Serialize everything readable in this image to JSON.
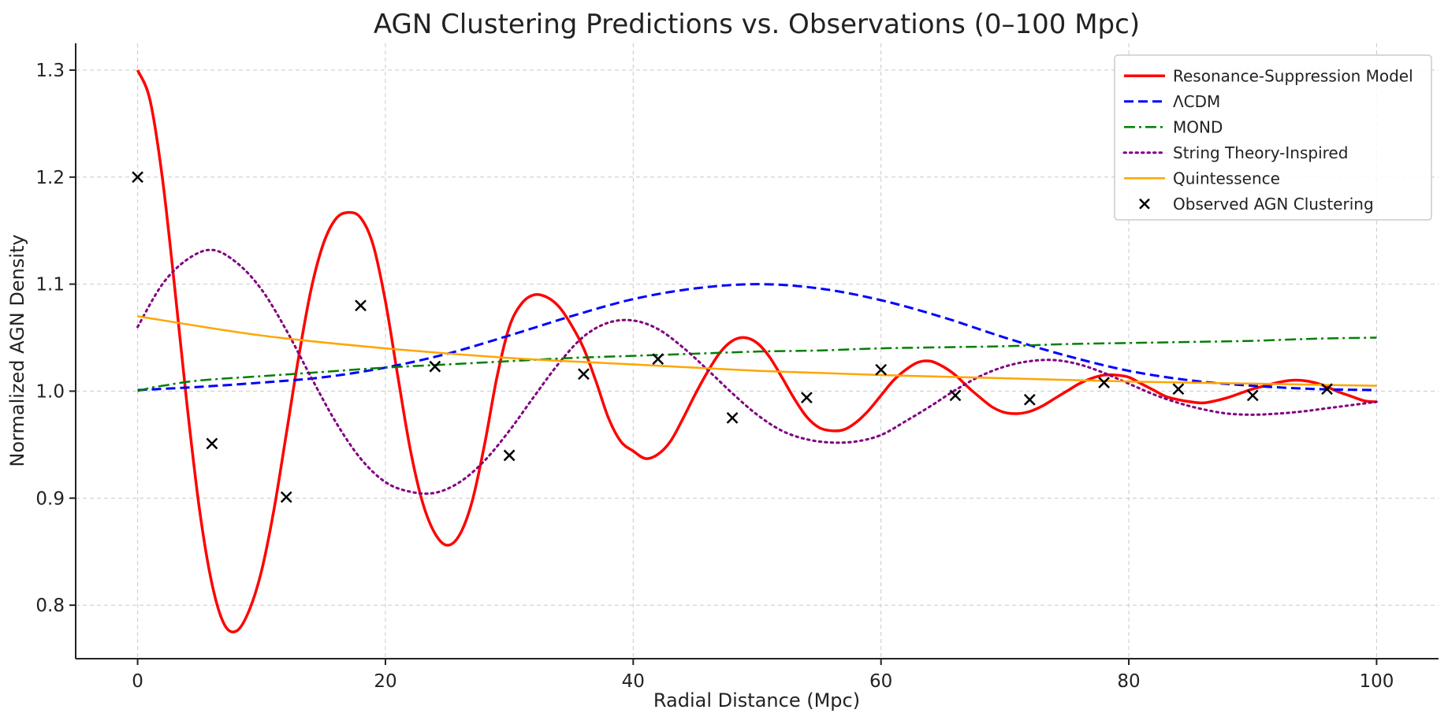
{
  "chart_data": {
    "type": "line",
    "title": "AGN Clustering Predictions vs. Observations (0–100 Mpc)",
    "xlabel": "Radial Distance (Mpc)",
    "ylabel": "Normalized AGN Density",
    "xlim": [
      -5,
      105
    ],
    "ylim": [
      0.75,
      1.325
    ],
    "xticks": [
      0,
      20,
      40,
      60,
      80,
      100
    ],
    "yticks": [
      0.8,
      0.9,
      1.0,
      1.1,
      1.2,
      1.3
    ],
    "xtick_labels": [
      "0",
      "20",
      "40",
      "60",
      "80",
      "100"
    ],
    "ytick_labels": [
      "0.8",
      "0.9",
      "1.0",
      "1.1",
      "1.2",
      "1.3"
    ],
    "grid": true,
    "legend_position": "top-right",
    "series": [
      {
        "name": "Resonance-Suppression Model",
        "kind": "line",
        "color": "#ff0000",
        "style": "solid",
        "width": 3.5,
        "x": [
          0,
          1,
          2,
          3,
          4,
          5,
          6,
          7,
          8,
          9,
          10,
          11,
          12,
          13,
          14,
          15,
          16,
          17,
          18,
          19,
          20,
          21,
          22,
          23,
          24,
          25,
          26,
          27,
          28,
          29,
          30,
          31,
          32,
          33,
          34,
          35,
          36,
          37,
          38,
          39,
          40,
          41,
          42,
          43,
          44,
          45,
          46,
          47,
          48,
          49,
          50,
          51,
          52,
          53,
          54,
          55,
          56,
          57,
          58,
          59,
          60,
          61,
          62,
          63,
          64,
          65,
          66,
          67,
          68,
          69,
          70,
          71,
          72,
          73,
          74,
          75,
          76,
          77,
          78,
          79,
          80,
          81,
          82,
          83,
          84,
          85,
          86,
          87,
          88,
          89,
          90,
          91,
          92,
          93,
          94,
          95,
          96,
          97,
          98,
          99,
          100
        ],
        "values": [
          1.3,
          1.272,
          1.199,
          1.096,
          0.986,
          0.889,
          0.82,
          0.782,
          0.776,
          0.795,
          0.832,
          0.889,
          0.96,
          1.032,
          1.095,
          1.138,
          1.161,
          1.167,
          1.162,
          1.137,
          1.084,
          1.014,
          0.946,
          0.896,
          0.867,
          0.856,
          0.866,
          0.897,
          0.95,
          1.013,
          1.06,
          1.082,
          1.09,
          1.088,
          1.079,
          1.062,
          1.04,
          1.009,
          0.975,
          0.953,
          0.944,
          0.937,
          0.941,
          0.953,
          0.974,
          0.997,
          1.018,
          1.036,
          1.047,
          1.05,
          1.045,
          1.032,
          1.013,
          0.993,
          0.976,
          0.966,
          0.963,
          0.964,
          0.971,
          0.982,
          0.996,
          1.01,
          1.02,
          1.027,
          1.028,
          1.023,
          1.015,
          1.004,
          0.994,
          0.985,
          0.98,
          0.979,
          0.981,
          0.986,
          0.993,
          1.0,
          1.007,
          1.012,
          1.015,
          1.015,
          1.013,
          1.007,
          1.001,
          0.995,
          0.992,
          0.99,
          0.989,
          0.991,
          0.994,
          0.998,
          1.002,
          1.005,
          1.008,
          1.01,
          1.01,
          1.008,
          1.004,
          0.999,
          0.995,
          0.991,
          0.99
        ]
      },
      {
        "name": "ΛCDM",
        "kind": "line",
        "color": "#0000ff",
        "style": "dashed",
        "width": 3,
        "x": [
          0,
          5,
          10,
          15,
          20,
          25,
          30,
          35,
          40,
          45,
          50,
          55,
          60,
          65,
          70,
          75,
          80,
          85,
          90,
          95,
          100
        ],
        "values": [
          1.001,
          1.004,
          1.008,
          1.013,
          1.022,
          1.035,
          1.052,
          1.07,
          1.086,
          1.096,
          1.1,
          1.096,
          1.085,
          1.069,
          1.05,
          1.033,
          1.019,
          1.01,
          1.005,
          1.002,
          1.001
        ]
      },
      {
        "name": "MOND",
        "kind": "line",
        "color": "#008000",
        "style": "dashdot",
        "width": 2.5,
        "x": [
          0,
          1,
          2,
          5,
          10,
          15,
          20,
          25,
          30,
          35,
          40,
          45,
          50,
          55,
          60,
          65,
          70,
          75,
          80,
          85,
          90,
          95,
          100
        ],
        "values": [
          1.0,
          1.003,
          1.005,
          1.01,
          1.014,
          1.018,
          1.022,
          1.025,
          1.028,
          1.031,
          1.033,
          1.035,
          1.037,
          1.038,
          1.04,
          1.041,
          1.042,
          1.044,
          1.045,
          1.046,
          1.047,
          1.049,
          1.05
        ]
      },
      {
        "name": "String Theory-Inspired",
        "kind": "line",
        "color": "#800080",
        "style": "dotted",
        "width": 3,
        "x": [
          0,
          2,
          4,
          6,
          8,
          10,
          12,
          14,
          16,
          18,
          20,
          22,
          24,
          26,
          28,
          30,
          32,
          34,
          36,
          38,
          40,
          42,
          44,
          46,
          48,
          50,
          52,
          54,
          56,
          58,
          60,
          62,
          64,
          66,
          68,
          70,
          72,
          74,
          76,
          78,
          80,
          82,
          84,
          86,
          88,
          90,
          92,
          94,
          96,
          98,
          100
        ],
        "values": [
          1.06,
          1.1,
          1.123,
          1.132,
          1.12,
          1.095,
          1.057,
          1.013,
          0.971,
          0.937,
          0.915,
          0.906,
          0.905,
          0.915,
          0.935,
          0.963,
          0.995,
          1.026,
          1.051,
          1.064,
          1.066,
          1.058,
          1.041,
          1.02,
          0.998,
          0.978,
          0.963,
          0.955,
          0.952,
          0.953,
          0.959,
          0.972,
          0.986,
          1.001,
          1.014,
          1.023,
          1.028,
          1.029,
          1.025,
          1.017,
          1.007,
          0.997,
          0.989,
          0.983,
          0.979,
          0.978,
          0.979,
          0.981,
          0.984,
          0.987,
          0.99
        ]
      },
      {
        "name": "Quintessence",
        "kind": "line",
        "color": "#ffa500",
        "style": "solid",
        "width": 2.5,
        "x": [
          0,
          10,
          20,
          30,
          40,
          50,
          60,
          70,
          80,
          90,
          100
        ],
        "values": [
          1.07,
          1.052,
          1.04,
          1.031,
          1.025,
          1.019,
          1.015,
          1.012,
          1.009,
          1.007,
          1.005
        ]
      },
      {
        "name": "Observed AGN Clustering",
        "kind": "scatter",
        "marker": "x",
        "color": "#000000",
        "x": [
          0,
          6,
          12,
          18,
          24,
          30,
          36,
          42,
          48,
          54,
          60,
          66,
          72,
          78,
          84,
          90,
          96
        ],
        "values": [
          1.2,
          0.951,
          0.901,
          1.08,
          1.023,
          0.94,
          1.016,
          1.03,
          0.975,
          0.994,
          1.02,
          0.996,
          0.992,
          1.008,
          1.002,
          0.996,
          1.002
        ]
      }
    ]
  }
}
